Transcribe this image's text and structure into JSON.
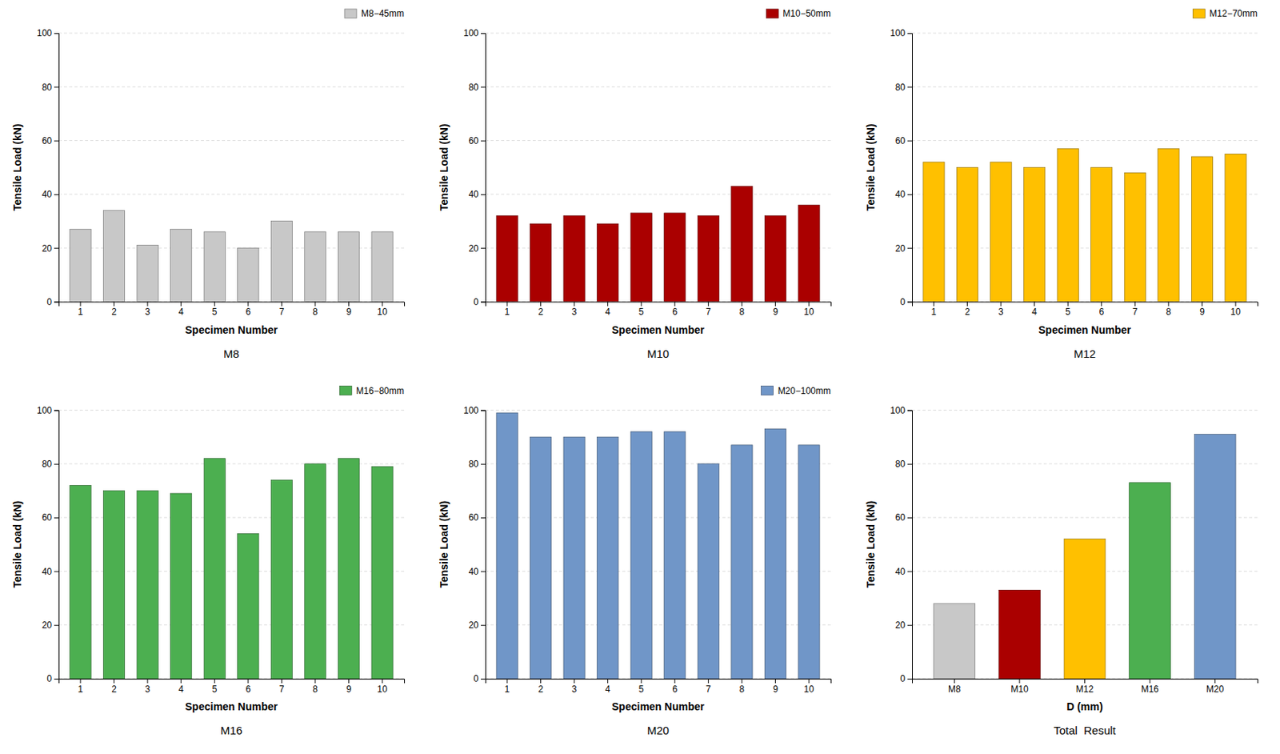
{
  "chart_data": [
    {
      "type": "bar",
      "title": "M8",
      "x_label": "Specimen Number",
      "y_label": "Tensile Load (kN)",
      "categories": [
        "1",
        "2",
        "3",
        "4",
        "5",
        "6",
        "7",
        "8",
        "9",
        "10"
      ],
      "series": [
        {
          "name": "M8−45mm",
          "color": "#C8C8C8",
          "values": [
            27,
            34,
            21,
            27,
            26,
            20,
            30,
            26,
            26,
            26
          ]
        }
      ],
      "ylim": [
        0,
        100
      ],
      "yticks": [
        0,
        20,
        40,
        60,
        80,
        100
      ],
      "grid": true,
      "legend": "upper right"
    },
    {
      "type": "bar",
      "title": "M10",
      "x_label": "Specimen Number",
      "y_label": "Tensile Load (kN)",
      "categories": [
        "1",
        "2",
        "3",
        "4",
        "5",
        "6",
        "7",
        "8",
        "9",
        "10"
      ],
      "series": [
        {
          "name": "M10−50mm",
          "color": "#AA0000",
          "values": [
            32,
            29,
            32,
            29,
            33,
            33,
            32,
            43,
            32,
            36
          ]
        }
      ],
      "ylim": [
        0,
        100
      ],
      "yticks": [
        0,
        20,
        40,
        60,
        80,
        100
      ],
      "grid": true,
      "legend": "upper right"
    },
    {
      "type": "bar",
      "title": "M12",
      "x_label": "Specimen Number",
      "y_label": "Tensile Load (kN)",
      "categories": [
        "1",
        "2",
        "3",
        "4",
        "5",
        "6",
        "7",
        "8",
        "9",
        "10"
      ],
      "series": [
        {
          "name": "M12−70mm",
          "color": "#FFC000",
          "values": [
            52,
            50,
            52,
            50,
            57,
            50,
            48,
            57,
            54,
            55
          ]
        }
      ],
      "ylim": [
        0,
        100
      ],
      "yticks": [
        0,
        20,
        40,
        60,
        80,
        100
      ],
      "grid": true,
      "legend": "upper right"
    },
    {
      "type": "bar",
      "title": "M16",
      "x_label": "Specimen Number",
      "y_label": "Tensile Load (kN)",
      "categories": [
        "1",
        "2",
        "3",
        "4",
        "5",
        "6",
        "7",
        "8",
        "9",
        "10"
      ],
      "series": [
        {
          "name": "M16−80mm",
          "color": "#4CAF50",
          "values": [
            72,
            70,
            70,
            69,
            82,
            54,
            74,
            80,
            82,
            79
          ]
        }
      ],
      "ylim": [
        0,
        100
      ],
      "yticks": [
        0,
        20,
        40,
        60,
        80,
        100
      ],
      "grid": true,
      "legend": "upper right"
    },
    {
      "type": "bar",
      "title": "M20",
      "x_label": "Specimen Number",
      "y_label": "Tensile Load (kN)",
      "categories": [
        "1",
        "2",
        "3",
        "4",
        "5",
        "6",
        "7",
        "8",
        "9",
        "10"
      ],
      "series": [
        {
          "name": "M20−100mm",
          "color": "#7096C8",
          "values": [
            99,
            90,
            90,
            90,
            92,
            92,
            80,
            87,
            93,
            87
          ]
        }
      ],
      "ylim": [
        0,
        100
      ],
      "yticks": [
        0,
        20,
        40,
        60,
        80,
        100
      ],
      "grid": true,
      "legend": "upper right"
    },
    {
      "type": "bar",
      "title": "Total  Result",
      "x_label": "D (mm)",
      "y_label": "Tensile Load (kN)",
      "categories": [
        "M8",
        "M10",
        "M12",
        "M16",
        "M20"
      ],
      "values": [
        28,
        33,
        52,
        73,
        91
      ],
      "colors": [
        "#C8C8C8",
        "#AA0000",
        "#FFC000",
        "#4CAF50",
        "#7096C8"
      ],
      "ylim": [
        0,
        100
      ],
      "yticks": [
        0,
        20,
        40,
        60,
        80,
        100
      ],
      "grid": true
    }
  ]
}
